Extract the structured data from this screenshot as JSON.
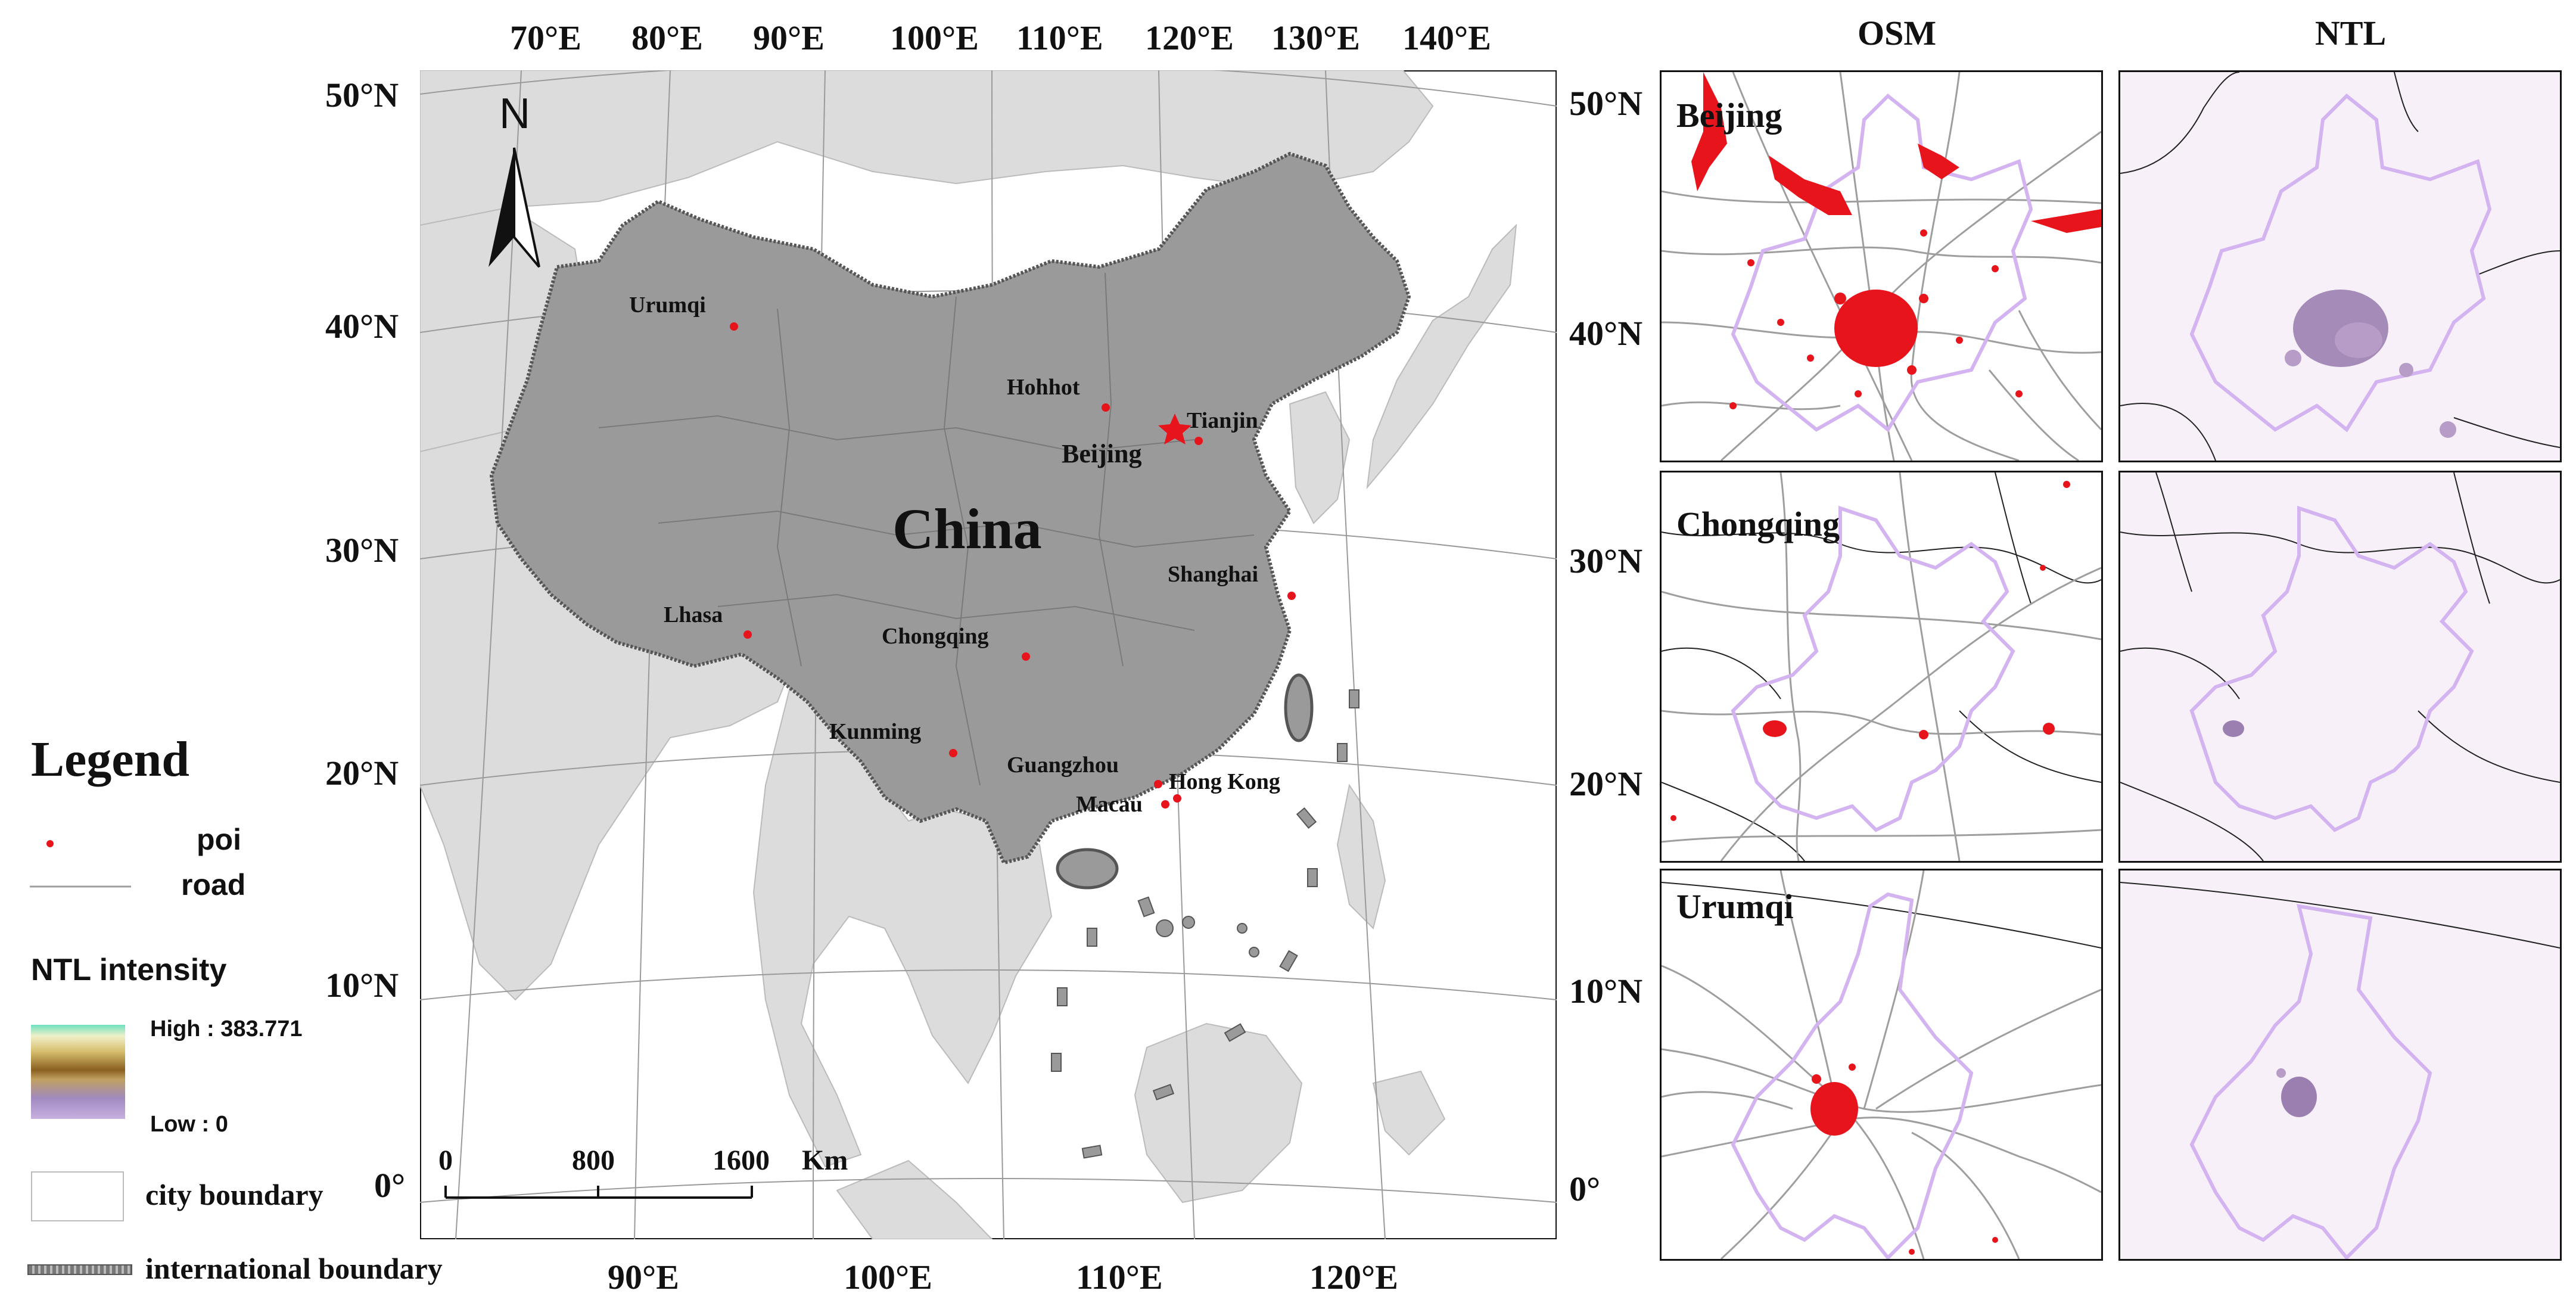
{
  "map": {
    "country_label": "China",
    "north_label": "N",
    "top_lon_labels": [
      "70°E",
      "80°E",
      "90°E",
      "100°E",
      "110°E",
      "120°E",
      "130°E",
      "140°E"
    ],
    "bottom_lon_labels": [
      "90°E",
      "100°E",
      "110°E",
      "120°E"
    ],
    "left_lat_labels": [
      "50°N",
      "40°N",
      "30°N",
      "20°N",
      "10°N",
      "0°"
    ],
    "right_lat_labels": [
      "50°N",
      "40°N",
      "30°N",
      "20°N",
      "10°N",
      "0°"
    ],
    "cities": [
      {
        "name": "Urumqi",
        "marker": "dot"
      },
      {
        "name": "Hohhot",
        "marker": "dot"
      },
      {
        "name": "Tianjin",
        "marker": "dot"
      },
      {
        "name": "Beijing",
        "marker": "star"
      },
      {
        "name": "Shanghai",
        "marker": "dot"
      },
      {
        "name": "Lhasa",
        "marker": "dot"
      },
      {
        "name": "Chongqing",
        "marker": "dot"
      },
      {
        "name": "Kunming",
        "marker": "dot"
      },
      {
        "name": "Guangzhou",
        "marker": "dot"
      },
      {
        "name": "Hong Kong",
        "marker": "dot"
      },
      {
        "name": "Macau",
        "marker": "dot"
      }
    ],
    "scale_bar": {
      "ticks": [
        "0",
        "800",
        "1600"
      ],
      "unit": "Km"
    }
  },
  "panels": {
    "column_headers": [
      "OSM",
      "NTL"
    ],
    "rows": [
      "Beijing",
      "Chongqing",
      "Urumqi"
    ]
  },
  "legend": {
    "title": "Legend",
    "poi": "poi",
    "road": "road",
    "ntl_title": "NTL intensity",
    "ntl_high": "High : 383.771",
    "ntl_low": "Low : 0",
    "city_boundary": "city boundary",
    "international_boundary": "international boundary"
  },
  "colors": {
    "china_fill": "#9a9a9a",
    "land_fill": "#dcdcdc",
    "sea_fill": "#ffffff",
    "poi": "#e8141c",
    "road": "#9e9e9e",
    "city_boundary": "#d3b3f0",
    "ntl_bg": "#f7f0f8",
    "ntl_blob": "#9a7fb0"
  }
}
